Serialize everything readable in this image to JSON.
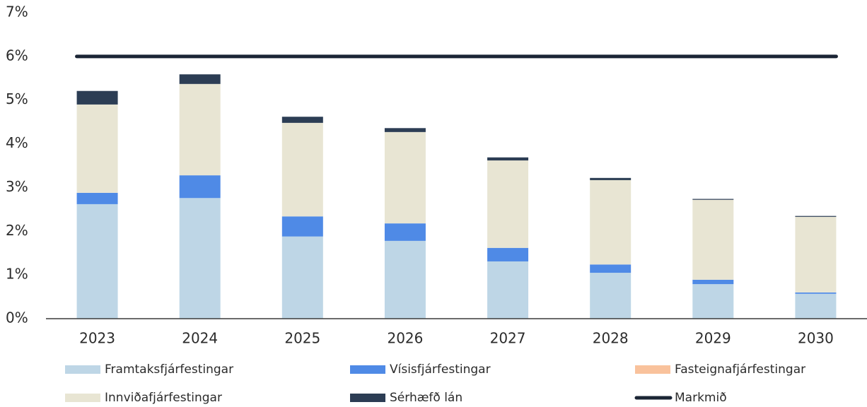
{
  "chart_data": {
    "type": "bar",
    "stacked": true,
    "categories": [
      "2023",
      "2024",
      "2025",
      "2026",
      "2027",
      "2028",
      "2029",
      "2030"
    ],
    "series": [
      {
        "name": "Framtaksfjárfestingar",
        "color": "#bed6e6",
        "values": [
          2.62,
          2.76,
          1.88,
          1.78,
          1.31,
          1.05,
          0.79,
          0.57
        ]
      },
      {
        "name": "Vísisfjárfestingar",
        "color": "#4f8ae6",
        "values": [
          0.26,
          0.52,
          0.46,
          0.4,
          0.31,
          0.19,
          0.1,
          0.03
        ]
      },
      {
        "name": "Fasteignafjárfestingar",
        "color": "#f9c29c",
        "values": [
          0,
          0,
          0,
          0,
          0,
          0,
          0,
          0
        ]
      },
      {
        "name": "Innviðafjárfestingar",
        "color": "#e8e5d3",
        "values": [
          2.02,
          2.09,
          2.14,
          2.09,
          2.0,
          1.93,
          1.83,
          1.73
        ]
      },
      {
        "name": "Sérhæfð lán",
        "color": "#2c3d54",
        "values": [
          0.31,
          0.22,
          0.14,
          0.09,
          0.07,
          0.05,
          0.02,
          0.02
        ]
      },
      {
        "name": "Markmið",
        "color": "#1b2535",
        "type": "line",
        "values": [
          6,
          6,
          6,
          6,
          6,
          6,
          6,
          6
        ]
      }
    ],
    "ylim": [
      0,
      7
    ],
    "yticks": [
      {
        "value": 0,
        "label": "0%"
      },
      {
        "value": 1,
        "label": "1%"
      },
      {
        "value": 2,
        "label": "2%"
      },
      {
        "value": 3,
        "label": "3%"
      },
      {
        "value": 4,
        "label": "4%"
      },
      {
        "value": 5,
        "label": "5%"
      },
      {
        "value": 6,
        "label": "6%"
      },
      {
        "value": 7,
        "label": "7%"
      }
    ],
    "grid": false,
    "legend": "bottom"
  }
}
